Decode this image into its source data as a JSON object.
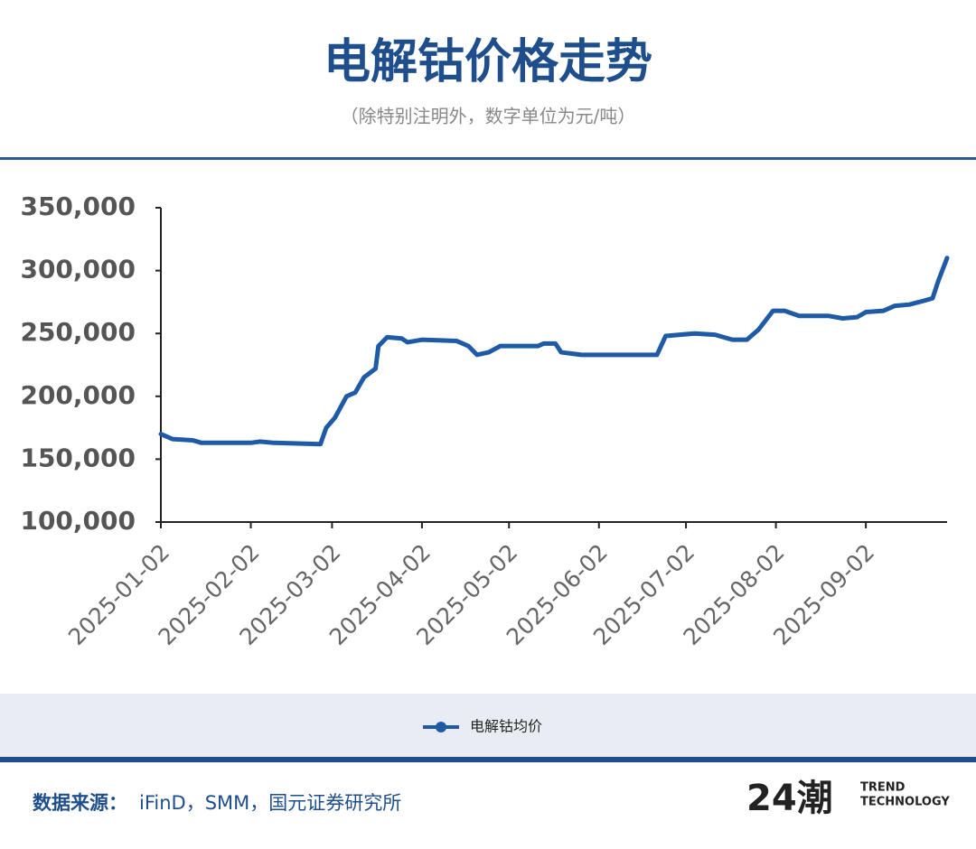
{
  "chart_data": {
    "type": "line",
    "title": "电解钴价格走势",
    "subtitle": "（除特别注明外，数字单位为元/吨）",
    "x": [
      "2025-01-02",
      "2025-01-06",
      "2025-01-13",
      "2025-01-16",
      "2025-02-02",
      "2025-02-05",
      "2025-02-10",
      "2025-02-26",
      "2025-02-28",
      "2025-03-03",
      "2025-03-07",
      "2025-03-10",
      "2025-03-13",
      "2025-03-17",
      "2025-03-18",
      "2025-03-21",
      "2025-03-26",
      "2025-03-28",
      "2025-04-02",
      "2025-04-14",
      "2025-04-18",
      "2025-04-21",
      "2025-04-25",
      "2025-04-29",
      "2025-05-12",
      "2025-05-14",
      "2025-05-18",
      "2025-05-20",
      "2025-05-27",
      "2025-06-22",
      "2025-06-25",
      "2025-07-05",
      "2025-07-12",
      "2025-07-18",
      "2025-07-23",
      "2025-07-27",
      "2025-08-01",
      "2025-08-05",
      "2025-08-10",
      "2025-08-20",
      "2025-08-25",
      "2025-08-30",
      "2025-09-02",
      "2025-09-08",
      "2025-09-12",
      "2025-09-17",
      "2025-09-22",
      "2025-09-25",
      "2025-09-27",
      "2025-09-30"
    ],
    "series": [
      {
        "name": "电解钴均价",
        "color": "#1f5aa6",
        "values": [
          170000,
          166000,
          165000,
          163000,
          163000,
          164000,
          163000,
          162000,
          175000,
          183000,
          200000,
          203000,
          215000,
          222000,
          240000,
          247000,
          246000,
          243000,
          245000,
          244000,
          240000,
          233000,
          235000,
          240000,
          240000,
          242000,
          242000,
          235000,
          233000,
          233000,
          248000,
          250000,
          249000,
          245000,
          245000,
          253000,
          268000,
          268000,
          264000,
          264000,
          262000,
          263000,
          267000,
          268000,
          272000,
          273000,
          276000,
          278000,
          292000,
          310000
        ]
      }
    ],
    "xlim": [
      "2025-01-02",
      "2025-09-30"
    ],
    "xticks": [
      "2025-01-02",
      "2025-02-02",
      "2025-03-02",
      "2025-04-02",
      "2025-05-02",
      "2025-06-02",
      "2025-07-02",
      "2025-08-02",
      "2025-09-02"
    ],
    "ylim": [
      100000,
      350000
    ],
    "yticks": [
      {
        "value": 100000,
        "label": "100,000"
      },
      {
        "value": 150000,
        "label": "150,000"
      },
      {
        "value": 200000,
        "label": "200,000"
      },
      {
        "value": 250000,
        "label": "250,000"
      },
      {
        "value": 300000,
        "label": "300,000"
      },
      {
        "value": 350000,
        "label": "350,000"
      }
    ],
    "source_label": "数据来源：",
    "source": "iFinD，SMM，国元证券研究所"
  },
  "brand": {
    "mark": "24潮",
    "tagline": [
      "TREND",
      "TECHNOLOGY"
    ]
  }
}
